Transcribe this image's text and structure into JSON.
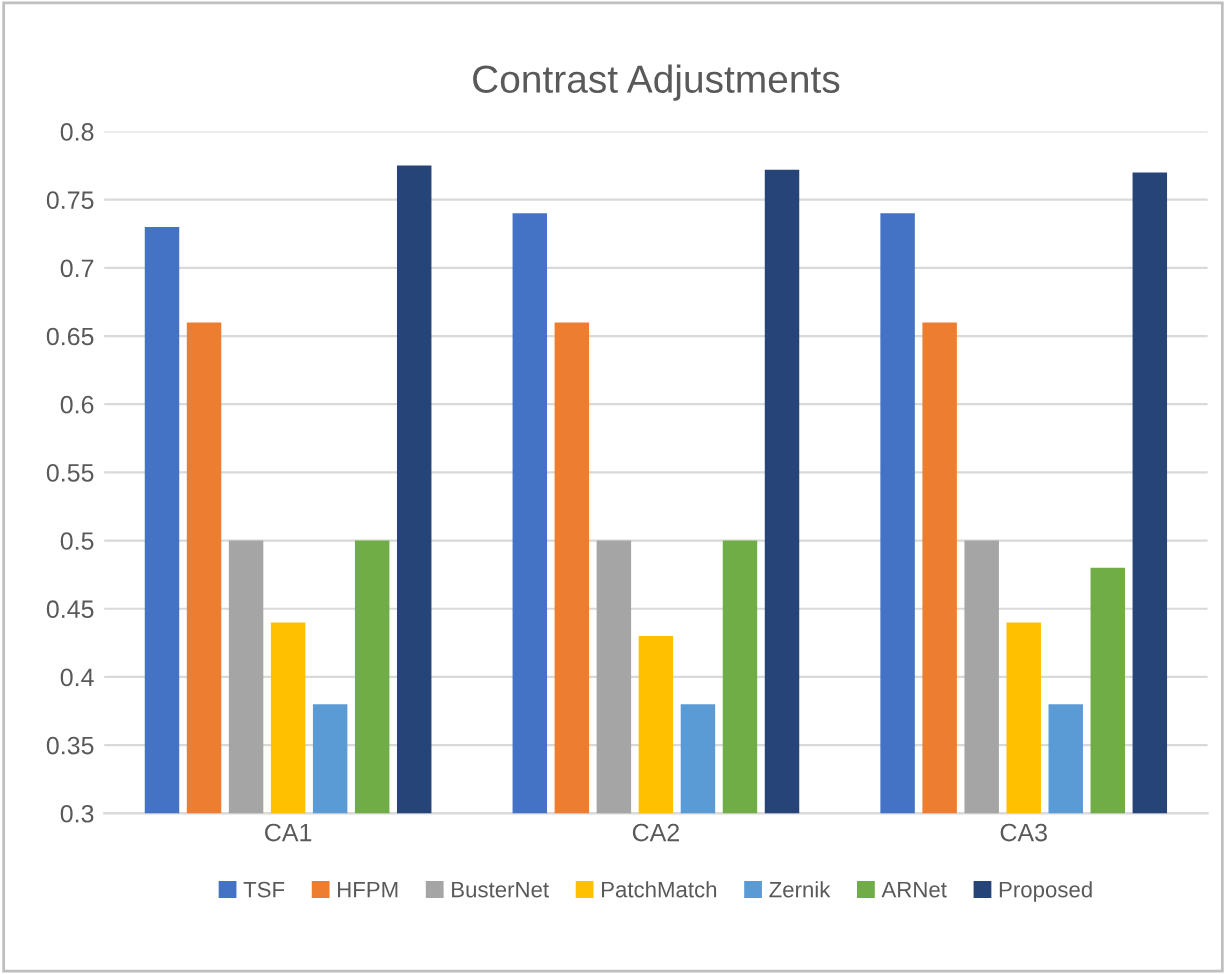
{
  "chart_data": {
    "type": "bar",
    "title": "Contrast Adjustments",
    "categories": [
      "CA1",
      "CA2",
      "CA3"
    ],
    "series": [
      {
        "name": "TSF",
        "color": "#4472c4",
        "values": [
          0.73,
          0.74,
          0.74
        ]
      },
      {
        "name": "HFPM",
        "color": "#ed7d31",
        "values": [
          0.66,
          0.66,
          0.66
        ]
      },
      {
        "name": "BusterNet",
        "color": "#a5a5a5",
        "values": [
          0.5,
          0.5,
          0.5
        ]
      },
      {
        "name": "PatchMatch",
        "color": "#ffc000",
        "values": [
          0.44,
          0.43,
          0.44
        ]
      },
      {
        "name": "Zernik",
        "color": "#5b9bd5",
        "values": [
          0.38,
          0.38,
          0.38
        ]
      },
      {
        "name": "ARNet",
        "color": "#70ad47",
        "values": [
          0.5,
          0.5,
          0.48
        ]
      },
      {
        "name": "Proposed",
        "color": "#264478",
        "values": [
          0.775,
          0.772,
          0.77
        ]
      }
    ],
    "ylim": [
      0.3,
      0.8
    ],
    "yticks": [
      {
        "value": 0.3,
        "label": "0.3"
      },
      {
        "value": 0.35,
        "label": "0.35"
      },
      {
        "value": 0.4,
        "label": "0.4"
      },
      {
        "value": 0.45,
        "label": "0.45"
      },
      {
        "value": 0.5,
        "label": "0.5"
      },
      {
        "value": 0.55,
        "label": "0.55"
      },
      {
        "value": 0.6,
        "label": "0.6"
      },
      {
        "value": 0.65,
        "label": "0.65"
      },
      {
        "value": 0.7,
        "label": "0.7"
      },
      {
        "value": 0.75,
        "label": "0.75"
      },
      {
        "value": 0.8,
        "label": "0.8"
      }
    ],
    "grid": "y",
    "legend": "bottom"
  }
}
